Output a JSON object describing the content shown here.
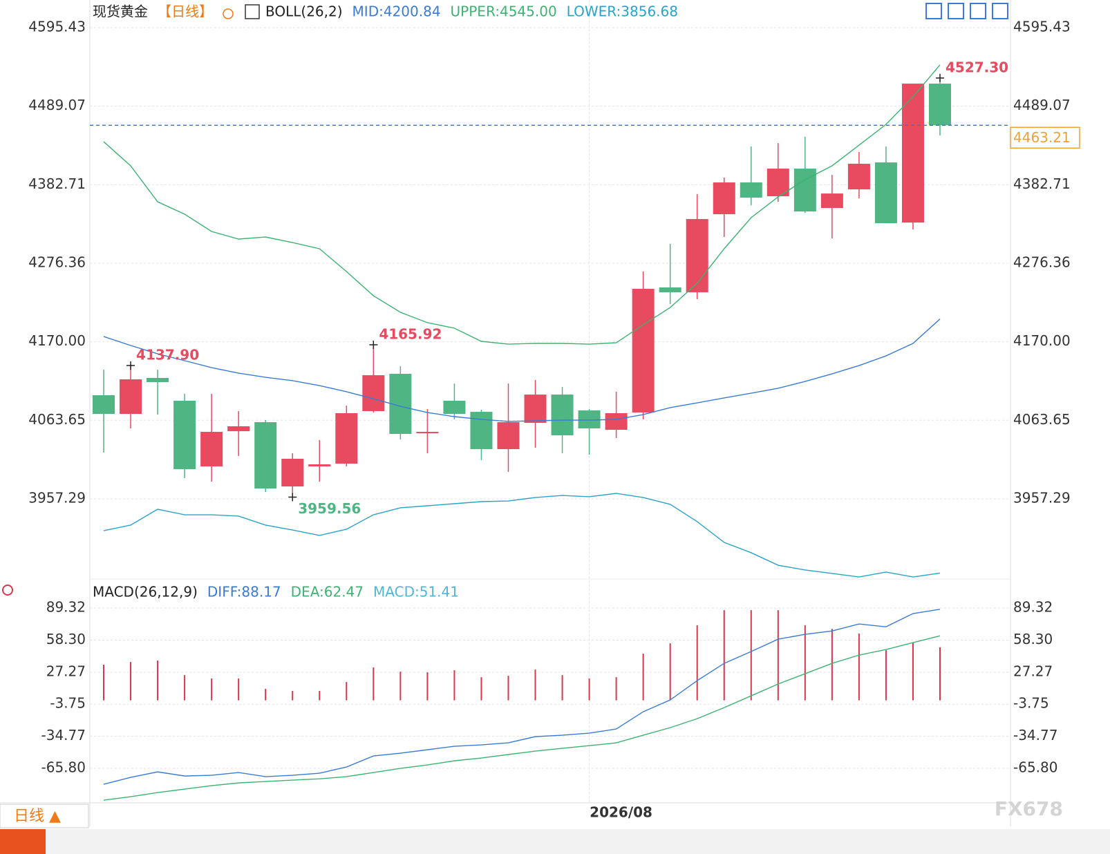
{
  "chart_data": [
    {
      "type": "candlestick",
      "title": "现货黄金",
      "period": "【日线】",
      "indicator": "BOLL(26,2)",
      "categories": [
        null,
        null,
        null,
        null,
        null,
        null,
        null,
        null,
        null,
        null,
        null,
        null,
        null,
        null,
        null,
        null,
        null,
        null,
        "2026/08",
        null,
        null,
        null,
        null,
        null,
        null,
        null,
        null,
        null,
        null,
        null,
        null,
        null
      ],
      "open": [
        4097.6,
        4072.3,
        4121.0,
        4090.1,
        4001.2,
        4048.9,
        4061.1,
        3974.1,
        4001.2,
        4005.0,
        4076.1,
        4126.6,
        4046.1,
        4090.1,
        4075.1,
        4024.6,
        4060.2,
        4098.5,
        4077.0,
        4050.8,
        4074.2,
        4243.6,
        4237.0,
        4342.8,
        4385.8,
        4367.1,
        4404.5,
        4351.2,
        4376.4,
        4412.9,
        4331.5,
        4519.6
      ],
      "high": [
        4132.2,
        4137.9,
        4132.2,
        4099.5,
        4099.5,
        4076.1,
        4063.9,
        4019.0,
        4036.8,
        4083.6,
        4165.92,
        4136.9,
        4078.9,
        4113.5,
        4078.0,
        4113.5,
        4118.2,
        4108.8,
        4078.9,
        4102.3,
        4265.1,
        4302.5,
        4369.9,
        4392.4,
        4434.5,
        4439.1,
        4447.6,
        4396.1,
        4427.0,
        4434.5,
        4519.6,
        4527.3
      ],
      "low": [
        4019.9,
        4052.7,
        4071.4,
        3985.3,
        3980.6,
        4015.3,
        3966.6,
        3959.56,
        3980.6,
        4001.2,
        4074.2,
        4037.7,
        4019.0,
        4064.9,
        4009.6,
        3993.7,
        4026.5,
        4019.0,
        4017.1,
        4039.6,
        4064.9,
        4221.1,
        4227.7,
        4311.9,
        4354.9,
        4359.6,
        4344.6,
        4310.0,
        4364.3,
        4330.6,
        4322.2,
        4449.4
      ],
      "close": [
        4072.3,
        4119.1,
        4115.4,
        3997.5,
        4048.0,
        4055.5,
        3971.3,
        4011.5,
        4004.0,
        4073.3,
        4124.7,
        4045.2,
        4048.0,
        4072.3,
        4024.6,
        4061.1,
        4098.5,
        4043.3,
        4052.7,
        4073.3,
        4241.7,
        4237.0,
        4336.2,
        4385.8,
        4365.2,
        4404.5,
        4346.5,
        4370.8,
        4411.1,
        4330.6,
        4519.6,
        4463.21
      ],
      "up_color": "#e84a5f",
      "down_color": "#4fb583",
      "series": [
        {
          "name": "MID:4200.84",
          "color": "#3a7bd5",
          "values": [
            4177.1,
            4165.0,
            4153.7,
            4144.4,
            4135.0,
            4127.5,
            4121.9,
            4117.3,
            4110.7,
            4102.3,
            4092.9,
            4082.6,
            4074.2,
            4068.6,
            4064.9,
            4062.1,
            4063.0,
            4063.9,
            4063.9,
            4064.9,
            4071.4,
            4080.8,
            4087.3,
            4093.9,
            4100.4,
            4107.0,
            4116.3,
            4126.6,
            4137.8,
            4150.9,
            4167.8,
            4200.84
          ]
        },
        {
          "name": "UPPER:4545.00",
          "color": "#3cb371",
          "values": [
            4441.0,
            4408.3,
            4359.6,
            4342.8,
            4319.4,
            4309.1,
            4311.9,
            4304.4,
            4296.0,
            4265.1,
            4232.3,
            4209.9,
            4195.9,
            4188.4,
            4170.6,
            4166.8,
            4167.8,
            4167.8,
            4166.8,
            4168.7,
            4193.0,
            4216.4,
            4249.2,
            4296.0,
            4338.1,
            4366.2,
            4389.5,
            4408.3,
            4436.3,
            4464.4,
            4501.8,
            4545.0
          ]
        },
        {
          "name": "LOWER:3856.68",
          "color": "#29a3c9",
          "values": [
            3914.2,
            3921.7,
            3943.2,
            3935.7,
            3935.7,
            3933.9,
            3921.7,
            3915.1,
            3907.7,
            3916.1,
            3935.7,
            3945.1,
            3947.9,
            3950.7,
            3953.5,
            3954.4,
            3959.1,
            3961.9,
            3960.1,
            3964.7,
            3959.1,
            3949.8,
            3926.4,
            3898.3,
            3884.3,
            3867.4,
            3860.9,
            3856.2,
            3851.5,
            3858.1,
            3851.5,
            3856.68
          ]
        }
      ],
      "ylim": [
        3848.7,
        4604.8
      ],
      "yticks": [
        4595.43,
        4489.07,
        4382.71,
        4276.36,
        {
          "value": 4170,
          "label": "4170.00"
        },
        4063.65,
        3957.29
      ],
      "grid": true,
      "annotations": [
        {
          "label": "4137.90",
          "value": 4137.9,
          "color": "#e84a5f"
        },
        {
          "label": "4165.92",
          "value": 4165.92,
          "color": "#e84a5f"
        },
        {
          "label": "3959.56",
          "value": 3959.56,
          "color": "#4fb583"
        },
        {
          "label": "4527.30",
          "value": 4527.3,
          "color": "#e84a5f"
        }
      ],
      "last": {
        "value": 4463.21,
        "label": "4463.21",
        "color": "#f0a030"
      }
    },
    {
      "type": "macd",
      "title": "MACD(26,12,9)",
      "series": [
        {
          "name": "DIFF:88.17",
          "color": "#3a7bd5",
          "kind": "line",
          "values": [
            -81.2,
            -74.5,
            -69.2,
            -73.2,
            -72.5,
            -69.8,
            -73.8,
            -72.5,
            -70.5,
            -64.5,
            -53.8,
            -51.1,
            -47.8,
            -44.4,
            -43.1,
            -41.1,
            -35.1,
            -33.7,
            -31.7,
            -27.7,
            -11.0,
            0.4,
            19.1,
            35.8,
            47.2,
            59.2,
            63.9,
            67.2,
            73.9,
            71.2,
            84.0,
            88.17
          ]
        },
        {
          "name": "DEA:62.47",
          "color": "#3cb371",
          "kind": "line",
          "values": [
            -96.6,
            -93.2,
            -89.2,
            -85.9,
            -82.5,
            -79.9,
            -78.5,
            -77.2,
            -75.9,
            -73.8,
            -69.8,
            -65.8,
            -62.5,
            -58.5,
            -55.8,
            -52.4,
            -49.1,
            -46.4,
            -43.8,
            -41.1,
            -33.7,
            -26.4,
            -17.7,
            -7.0,
            4.4,
            15.8,
            25.8,
            35.8,
            43.8,
            49.2,
            55.9,
            62.47
          ]
        },
        {
          "name": "MACD:51.41",
          "color": "#4fb6d8",
          "kind": "bar",
          "bar_color": "#d9364a",
          "values": [
            34.5,
            37.1,
            38.5,
            24.4,
            21.1,
            21.1,
            11.1,
            9.1,
            9.1,
            17.8,
            31.8,
            27.8,
            27.1,
            29.1,
            22.4,
            23.8,
            29.8,
            24.4,
            21.1,
            22.4,
            45.2,
            55.2,
            72.6,
            87.3,
            87.3,
            87.3,
            72.6,
            69.2,
            64.6,
            48.5,
            55.9,
            51.41
          ]
        }
      ],
      "ylim": [
        -99.2,
        116.1
      ],
      "yticks": [
        89.32,
        {
          "value": 58.3,
          "label": "58.30"
        },
        27.27,
        -3.75,
        -34.77,
        {
          "value": -65.8,
          "label": "-65.80"
        }
      ],
      "grid": true
    }
  ],
  "footer": {
    "tab": "日线 ▲",
    "watermark": "FX678"
  }
}
